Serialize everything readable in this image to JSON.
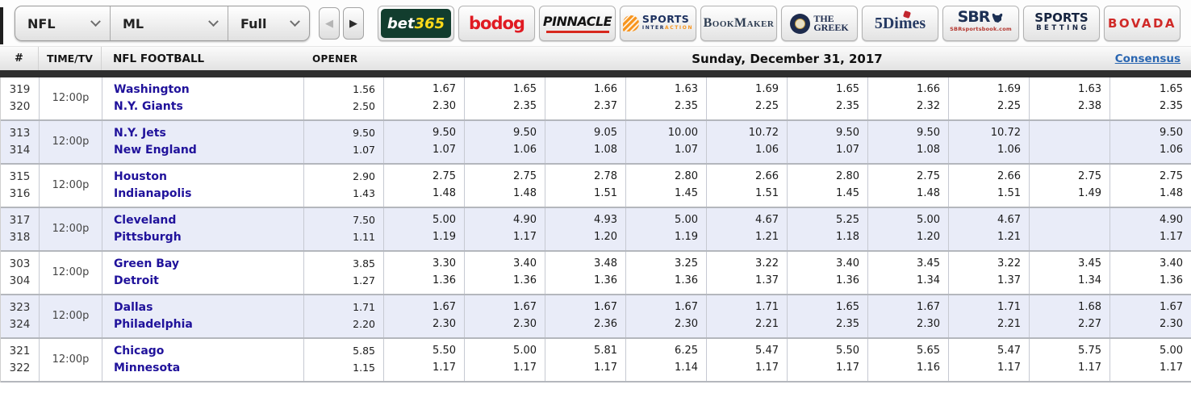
{
  "toolbar": {
    "filters": [
      {
        "label": "NFL"
      },
      {
        "label": "ML"
      },
      {
        "label": "Full"
      }
    ],
    "prev_label": "◀",
    "next_label": "▶",
    "books": [
      {
        "name": "bet365",
        "part1": "bet",
        "part2": "365"
      },
      {
        "name": "bodog",
        "label": "bodog"
      },
      {
        "name": "pinnacle",
        "label": "PINNACLE"
      },
      {
        "name": "sports-interaction",
        "line1": "SPORTS",
        "line2a": "INTER",
        "line2b": "ACTION"
      },
      {
        "name": "bookmaker",
        "label": "BookMaker"
      },
      {
        "name": "the-greek",
        "line1": "THE",
        "line2": "GREEK"
      },
      {
        "name": "5dimes",
        "label": "5Dimes"
      },
      {
        "name": "sbr",
        "label": "SBR",
        "sub": "SBRsportsbook.com"
      },
      {
        "name": "sportsbetting",
        "line1": "SPORTS",
        "line2": "BETTING"
      },
      {
        "name": "bovada",
        "label": "BOVADA"
      }
    ]
  },
  "header": {
    "num": "#",
    "time_tv": "TIME/TV",
    "league": "NFL FOOTBALL",
    "opener": "OPENER",
    "date": "Sunday, December 31, 2017",
    "consensus": "Consensus"
  },
  "colors": {
    "accent_link": "#2a66b1",
    "team_link": "#20129b",
    "alt_row": "#e9ecf8",
    "dark_strip": "#2f2f2f"
  },
  "games": [
    {
      "rot": [
        "319",
        "320"
      ],
      "time": "12:00p",
      "teams": [
        "Washington",
        "N.Y. Giants"
      ],
      "opener": [
        "1.56",
        "2.50"
      ],
      "odds": [
        [
          "1.67",
          "2.30"
        ],
        [
          "1.65",
          "2.35"
        ],
        [
          "1.66",
          "2.37"
        ],
        [
          "1.63",
          "2.35"
        ],
        [
          "1.69",
          "2.25"
        ],
        [
          "1.65",
          "2.35"
        ],
        [
          "1.66",
          "2.32"
        ],
        [
          "1.69",
          "2.25"
        ],
        [
          "1.63",
          "2.38"
        ],
        [
          "1.65",
          "2.35"
        ]
      ]
    },
    {
      "rot": [
        "313",
        "314"
      ],
      "time": "12:00p",
      "teams": [
        "N.Y. Jets",
        "New England"
      ],
      "opener": [
        "9.50",
        "1.07"
      ],
      "odds": [
        [
          "9.50",
          "1.07"
        ],
        [
          "9.50",
          "1.06"
        ],
        [
          "9.05",
          "1.08"
        ],
        [
          "10.00",
          "1.07"
        ],
        [
          "10.72",
          "1.06"
        ],
        [
          "9.50",
          "1.07"
        ],
        [
          "9.50",
          "1.08"
        ],
        [
          "10.72",
          "1.06"
        ],
        [
          "",
          ""
        ],
        [
          "9.50",
          "1.06"
        ]
      ]
    },
    {
      "rot": [
        "315",
        "316"
      ],
      "time": "12:00p",
      "teams": [
        "Houston",
        "Indianapolis"
      ],
      "opener": [
        "2.90",
        "1.43"
      ],
      "odds": [
        [
          "2.75",
          "1.48"
        ],
        [
          "2.75",
          "1.48"
        ],
        [
          "2.78",
          "1.51"
        ],
        [
          "2.80",
          "1.45"
        ],
        [
          "2.66",
          "1.51"
        ],
        [
          "2.80",
          "1.45"
        ],
        [
          "2.75",
          "1.48"
        ],
        [
          "2.66",
          "1.51"
        ],
        [
          "2.75",
          "1.49"
        ],
        [
          "2.75",
          "1.48"
        ]
      ]
    },
    {
      "rot": [
        "317",
        "318"
      ],
      "time": "12:00p",
      "teams": [
        "Cleveland",
        "Pittsburgh"
      ],
      "opener": [
        "7.50",
        "1.11"
      ],
      "odds": [
        [
          "5.00",
          "1.19"
        ],
        [
          "4.90",
          "1.17"
        ],
        [
          "4.93",
          "1.20"
        ],
        [
          "5.00",
          "1.19"
        ],
        [
          "4.67",
          "1.21"
        ],
        [
          "5.25",
          "1.18"
        ],
        [
          "5.00",
          "1.20"
        ],
        [
          "4.67",
          "1.21"
        ],
        [
          "",
          ""
        ],
        [
          "4.90",
          "1.17"
        ]
      ]
    },
    {
      "rot": [
        "303",
        "304"
      ],
      "time": "12:00p",
      "teams": [
        "Green Bay",
        "Detroit"
      ],
      "opener": [
        "3.85",
        "1.27"
      ],
      "odds": [
        [
          "3.30",
          "1.36"
        ],
        [
          "3.40",
          "1.36"
        ],
        [
          "3.48",
          "1.36"
        ],
        [
          "3.25",
          "1.36"
        ],
        [
          "3.22",
          "1.37"
        ],
        [
          "3.40",
          "1.36"
        ],
        [
          "3.45",
          "1.34"
        ],
        [
          "3.22",
          "1.37"
        ],
        [
          "3.45",
          "1.34"
        ],
        [
          "3.40",
          "1.36"
        ]
      ]
    },
    {
      "rot": [
        "323",
        "324"
      ],
      "time": "12:00p",
      "teams": [
        "Dallas",
        "Philadelphia"
      ],
      "opener": [
        "1.71",
        "2.20"
      ],
      "odds": [
        [
          "1.67",
          "2.30"
        ],
        [
          "1.67",
          "2.30"
        ],
        [
          "1.67",
          "2.36"
        ],
        [
          "1.67",
          "2.30"
        ],
        [
          "1.71",
          "2.21"
        ],
        [
          "1.65",
          "2.35"
        ],
        [
          "1.67",
          "2.30"
        ],
        [
          "1.71",
          "2.21"
        ],
        [
          "1.68",
          "2.27"
        ],
        [
          "1.67",
          "2.30"
        ]
      ]
    },
    {
      "rot": [
        "321",
        "322"
      ],
      "time": "12:00p",
      "teams": [
        "Chicago",
        "Minnesota"
      ],
      "opener": [
        "5.85",
        "1.15"
      ],
      "odds": [
        [
          "5.50",
          "1.17"
        ],
        [
          "5.00",
          "1.17"
        ],
        [
          "5.81",
          "1.17"
        ],
        [
          "6.25",
          "1.14"
        ],
        [
          "5.47",
          "1.17"
        ],
        [
          "5.50",
          "1.17"
        ],
        [
          "5.65",
          "1.16"
        ],
        [
          "5.47",
          "1.17"
        ],
        [
          "5.75",
          "1.17"
        ],
        [
          "5.00",
          "1.17"
        ]
      ]
    }
  ]
}
